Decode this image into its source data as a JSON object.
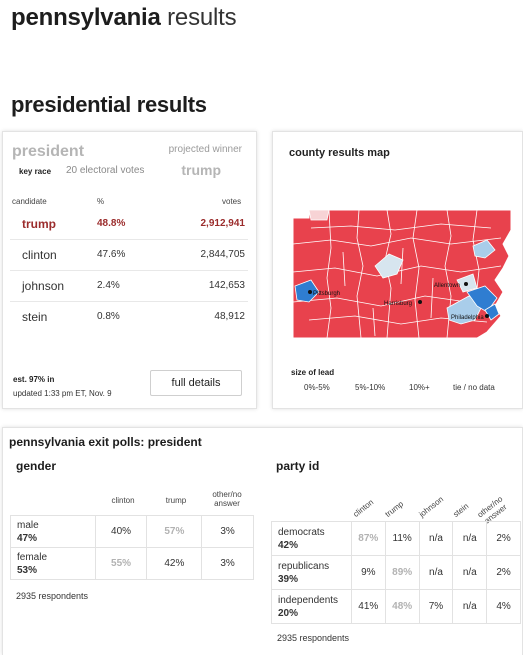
{
  "page": {
    "state": "pennsylvania",
    "suffix": "results"
  },
  "section_title": "presidential results",
  "race": {
    "title": "president",
    "projected_label": "projected winner",
    "key_race": "key race",
    "electoral_votes": "20 electoral votes",
    "projected_winner": "trump",
    "headers": {
      "candidate": "candidate",
      "pct": "%",
      "votes": "votes"
    },
    "candidates": [
      {
        "name": "trump",
        "pct": "48.8%",
        "votes": "2,912,941"
      },
      {
        "name": "clinton",
        "pct": "47.6%",
        "votes": "2,844,705"
      },
      {
        "name": "johnson",
        "pct": "2.4%",
        "votes": "142,653"
      },
      {
        "name": "stein",
        "pct": "0.8%",
        "votes": "48,912"
      }
    ],
    "estimate": "est. 97% in",
    "updated": "updated 1:33 pm ET, Nov. 9",
    "details_button": "full details"
  },
  "map": {
    "title": "county results map",
    "cities": [
      "Pittsburgh",
      "Harrisburg",
      "Allentown",
      "Philadelphia"
    ],
    "lead_title": "size of lead",
    "legend": [
      "0%-5%",
      "5%-10%",
      "10%+",
      "tie / no data"
    ],
    "colors": {
      "rep": "#e8424d",
      "dem": "#2f7dd1",
      "dem_light": "#a9cdea",
      "tie": "#d7e5ef"
    }
  },
  "exit_polls": {
    "title": "pennsylvania exit polls: president",
    "gender": {
      "title": "gender",
      "columns": [
        "clinton",
        "trump",
        "other/no answer"
      ],
      "rows": [
        {
          "label": "male",
          "share": "47%",
          "values": [
            "40%",
            "57%",
            "3%"
          ]
        },
        {
          "label": "female",
          "share": "53%",
          "values": [
            "55%",
            "42%",
            "3%"
          ]
        }
      ],
      "respondents": "2935 respondents"
    },
    "party": {
      "title": "party id",
      "columns": [
        "clinton",
        "trump",
        "johnson",
        "stein",
        "other/no answer"
      ],
      "rows": [
        {
          "label": "democrats",
          "share": "42%",
          "values": [
            "87%",
            "11%",
            "n/a",
            "n/a",
            "2%"
          ]
        },
        {
          "label": "republicans",
          "share": "39%",
          "values": [
            "9%",
            "89%",
            "n/a",
            "n/a",
            "2%"
          ]
        },
        {
          "label": "independents",
          "share": "20%",
          "values": [
            "41%",
            "48%",
            "7%",
            "n/a",
            "4%"
          ]
        }
      ],
      "respondents": "2935 respondents"
    }
  }
}
